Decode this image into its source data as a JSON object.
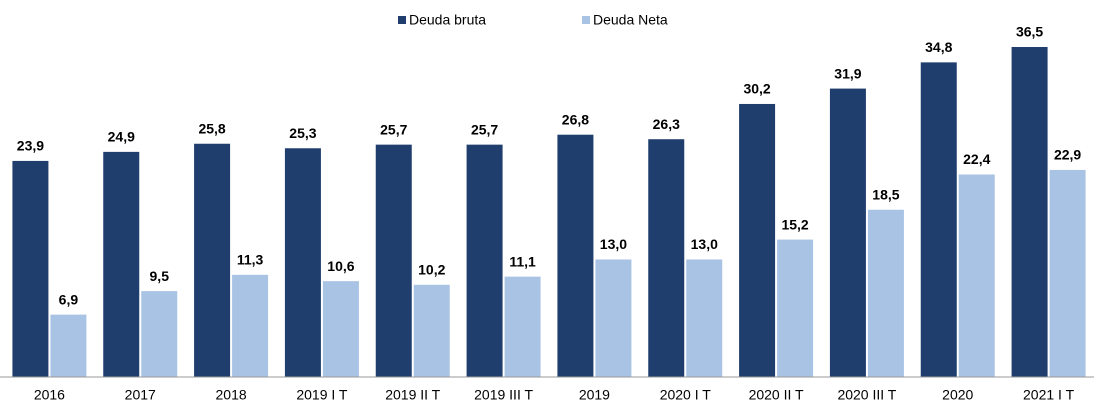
{
  "chart_data": {
    "type": "bar",
    "categories": [
      "2016",
      "2017",
      "2018",
      "2019 I T",
      "2019 II T",
      "2019 III T",
      "2019",
      "2020 I T",
      "2020 II T",
      "2020 III T",
      "2020",
      "2021 I T"
    ],
    "series": [
      {
        "name": "Deuda bruta",
        "color": "#1f3e6d",
        "values": [
          23.9,
          24.9,
          25.8,
          25.3,
          25.7,
          25.7,
          26.8,
          26.3,
          30.2,
          31.9,
          34.8,
          36.5
        ],
        "value_labels": [
          "23,9",
          "24,9",
          "25,8",
          "25,3",
          "25,7",
          "25,7",
          "26,8",
          "26,3",
          "30,2",
          "31,9",
          "34,8",
          "36,5"
        ]
      },
      {
        "name": "Deuda Neta",
        "color": "#a9c3e4",
        "values": [
          6.9,
          9.5,
          11.3,
          10.6,
          10.2,
          11.1,
          13.0,
          13.0,
          15.2,
          18.5,
          22.4,
          22.9
        ],
        "value_labels": [
          "6,9",
          "9,5",
          "11,3",
          "10,6",
          "10,2",
          "11,1",
          "13,0",
          "13,0",
          "15,2",
          "18,5",
          "22,4",
          "22,9"
        ]
      }
    ]
  }
}
